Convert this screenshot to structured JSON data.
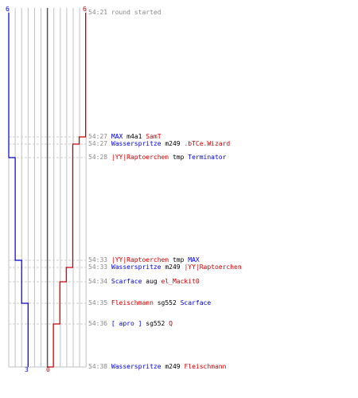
{
  "teams": {
    "blue": {
      "color": "#0000cc",
      "start": "6",
      "end": "3"
    },
    "red": {
      "color": "#cc0000",
      "start": "6",
      "end": "0"
    }
  },
  "colors": {
    "time": "#888888",
    "grid": "#c0c0c0",
    "dash": "#cccccc",
    "center": "#555555",
    "plain": "#000000"
  },
  "events": [
    {
      "time": "54:21",
      "parts": [
        {
          "text": "round started",
          "team": "msg"
        }
      ]
    },
    {
      "time": "54:27",
      "parts": [
        {
          "text": "MAX",
          "team": "blue"
        },
        {
          "text": " m4a1 ",
          "team": "plain"
        },
        {
          "text": "SamT",
          "team": "red"
        }
      ]
    },
    {
      "time": "54:27",
      "parts": [
        {
          "text": "Wasserspritze",
          "team": "blue"
        },
        {
          "text": " m249 ",
          "team": "plain"
        },
        {
          "text": ".bTCe.Wizard",
          "team": "red"
        }
      ]
    },
    {
      "time": "54:28",
      "parts": [
        {
          "text": "|YY|Raptoerchen",
          "team": "red"
        },
        {
          "text": " tmp ",
          "team": "plain"
        },
        {
          "text": "Terminator",
          "team": "blue"
        }
      ]
    },
    {
      "time": "54:33",
      "parts": [
        {
          "text": "|YY|Raptoerchen",
          "team": "red"
        },
        {
          "text": " tmp ",
          "team": "plain"
        },
        {
          "text": "MAX",
          "team": "blue"
        }
      ]
    },
    {
      "time": "54:33",
      "parts": [
        {
          "text": "Wasserspritze",
          "team": "blue"
        },
        {
          "text": " m249 ",
          "team": "plain"
        },
        {
          "text": "|YY|Raptoerchen",
          "team": "red"
        }
      ]
    },
    {
      "time": "54:34",
      "parts": [
        {
          "text": "Scarface",
          "team": "blue"
        },
        {
          "text": " aug ",
          "team": "plain"
        },
        {
          "text": "el_Mackit0",
          "team": "red"
        }
      ]
    },
    {
      "time": "54:35",
      "parts": [
        {
          "text": "Fleischmann",
          "team": "red"
        },
        {
          "text": " sg552 ",
          "team": "plain"
        },
        {
          "text": "Scarface",
          "team": "blue"
        }
      ]
    },
    {
      "time": "54:36",
      "parts": [
        {
          "text": "[ apro ]",
          "team": "blue"
        },
        {
          "text": " sg552 ",
          "team": "plain"
        },
        {
          "text": "Q",
          "team": "red"
        }
      ]
    },
    {
      "time": "54:38",
      "parts": [
        {
          "text": "Wasserspritze",
          "team": "blue"
        },
        {
          "text": " m249 ",
          "team": "plain"
        },
        {
          "text": "Fleischmann",
          "team": "red"
        }
      ]
    }
  ]
}
